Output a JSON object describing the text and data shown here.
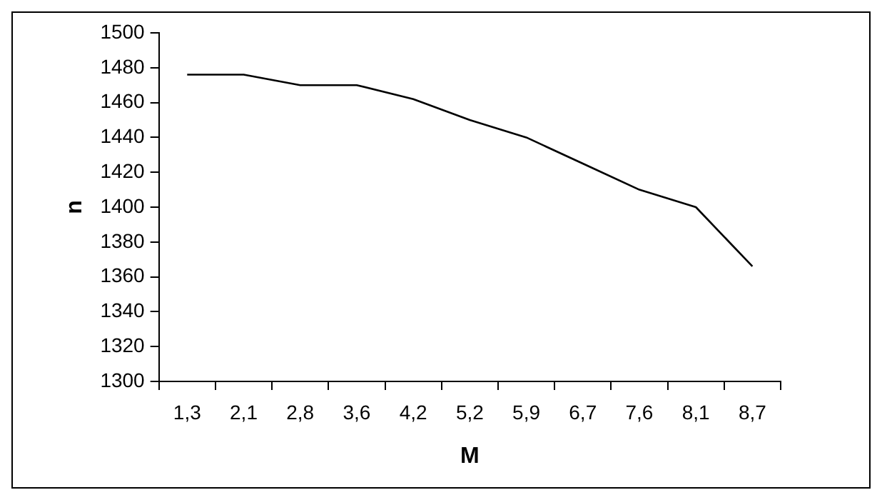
{
  "chart_data": {
    "type": "line",
    "xlabel": "M",
    "ylabel": "n",
    "categories": [
      "1,3",
      "2,1",
      "2,8",
      "3,6",
      "4,2",
      "5,2",
      "5,9",
      "6,7",
      "7,6",
      "8,1",
      "8,7"
    ],
    "series": [
      {
        "color": "#000000",
        "values": [
          1476,
          1476,
          1470,
          1470,
          1462,
          1450,
          1440,
          1425,
          1410,
          1400,
          1366
        ]
      }
    ],
    "ylim": [
      1300,
      1500
    ],
    "yticks": [
      1300,
      1320,
      1340,
      1360,
      1380,
      1400,
      1420,
      1440,
      1460,
      1480,
      1500
    ],
    "marker": "none",
    "line_style": "solid",
    "legend": false
  }
}
